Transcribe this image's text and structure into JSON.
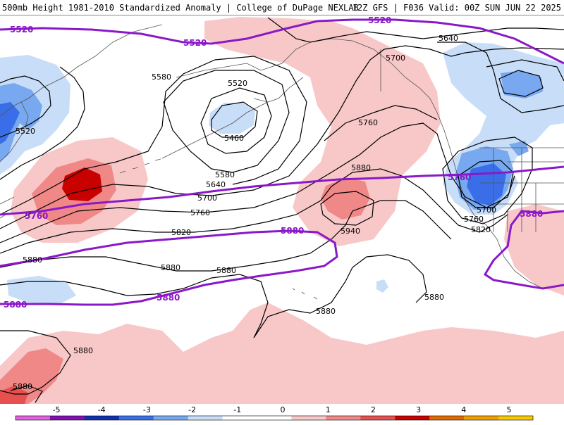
{
  "header": {
    "title_left": "500mb Height 1981-2010 Standardized Anomaly | College of DuPage NEXLAB",
    "title_right": "12Z GFS | F036 Valid: 00Z SUN JUN 22 2025"
  },
  "colors": {
    "purple_contour": "#8a18c8",
    "black_contour": "#000000",
    "coast": "#555555"
  },
  "colorbar": {
    "ticks": [
      "-5",
      "-4",
      "-3",
      "-2",
      "-1",
      "0",
      "1",
      "2",
      "3",
      "4",
      "5"
    ],
    "bins": [
      "#e060e0",
      "#8010b0",
      "#1030b0",
      "#3a6ee8",
      "#78a8f0",
      "#c8ddf8",
      "#ffffff",
      "#ffffff",
      "#f8c8c8",
      "#f08888",
      "#e85050",
      "#c80000",
      "#e06a00",
      "#f0a000",
      "#f8c800"
    ]
  },
  "contour_labels": {
    "black": [
      "5580",
      "5520",
      "5460",
      "5580",
      "5640",
      "5700",
      "5760",
      "5820",
      "5880",
      "5940",
      "5880",
      "5880",
      "5880",
      "5640",
      "5700",
      "5760",
      "5700",
      "5760",
      "5820",
      "5880",
      "5880",
      "5520",
      "5880",
      "5880"
    ],
    "purple": [
      "5520",
      "5520",
      "5520",
      "5760",
      "5760",
      "5880",
      "5880",
      "5880",
      "5880"
    ]
  }
}
